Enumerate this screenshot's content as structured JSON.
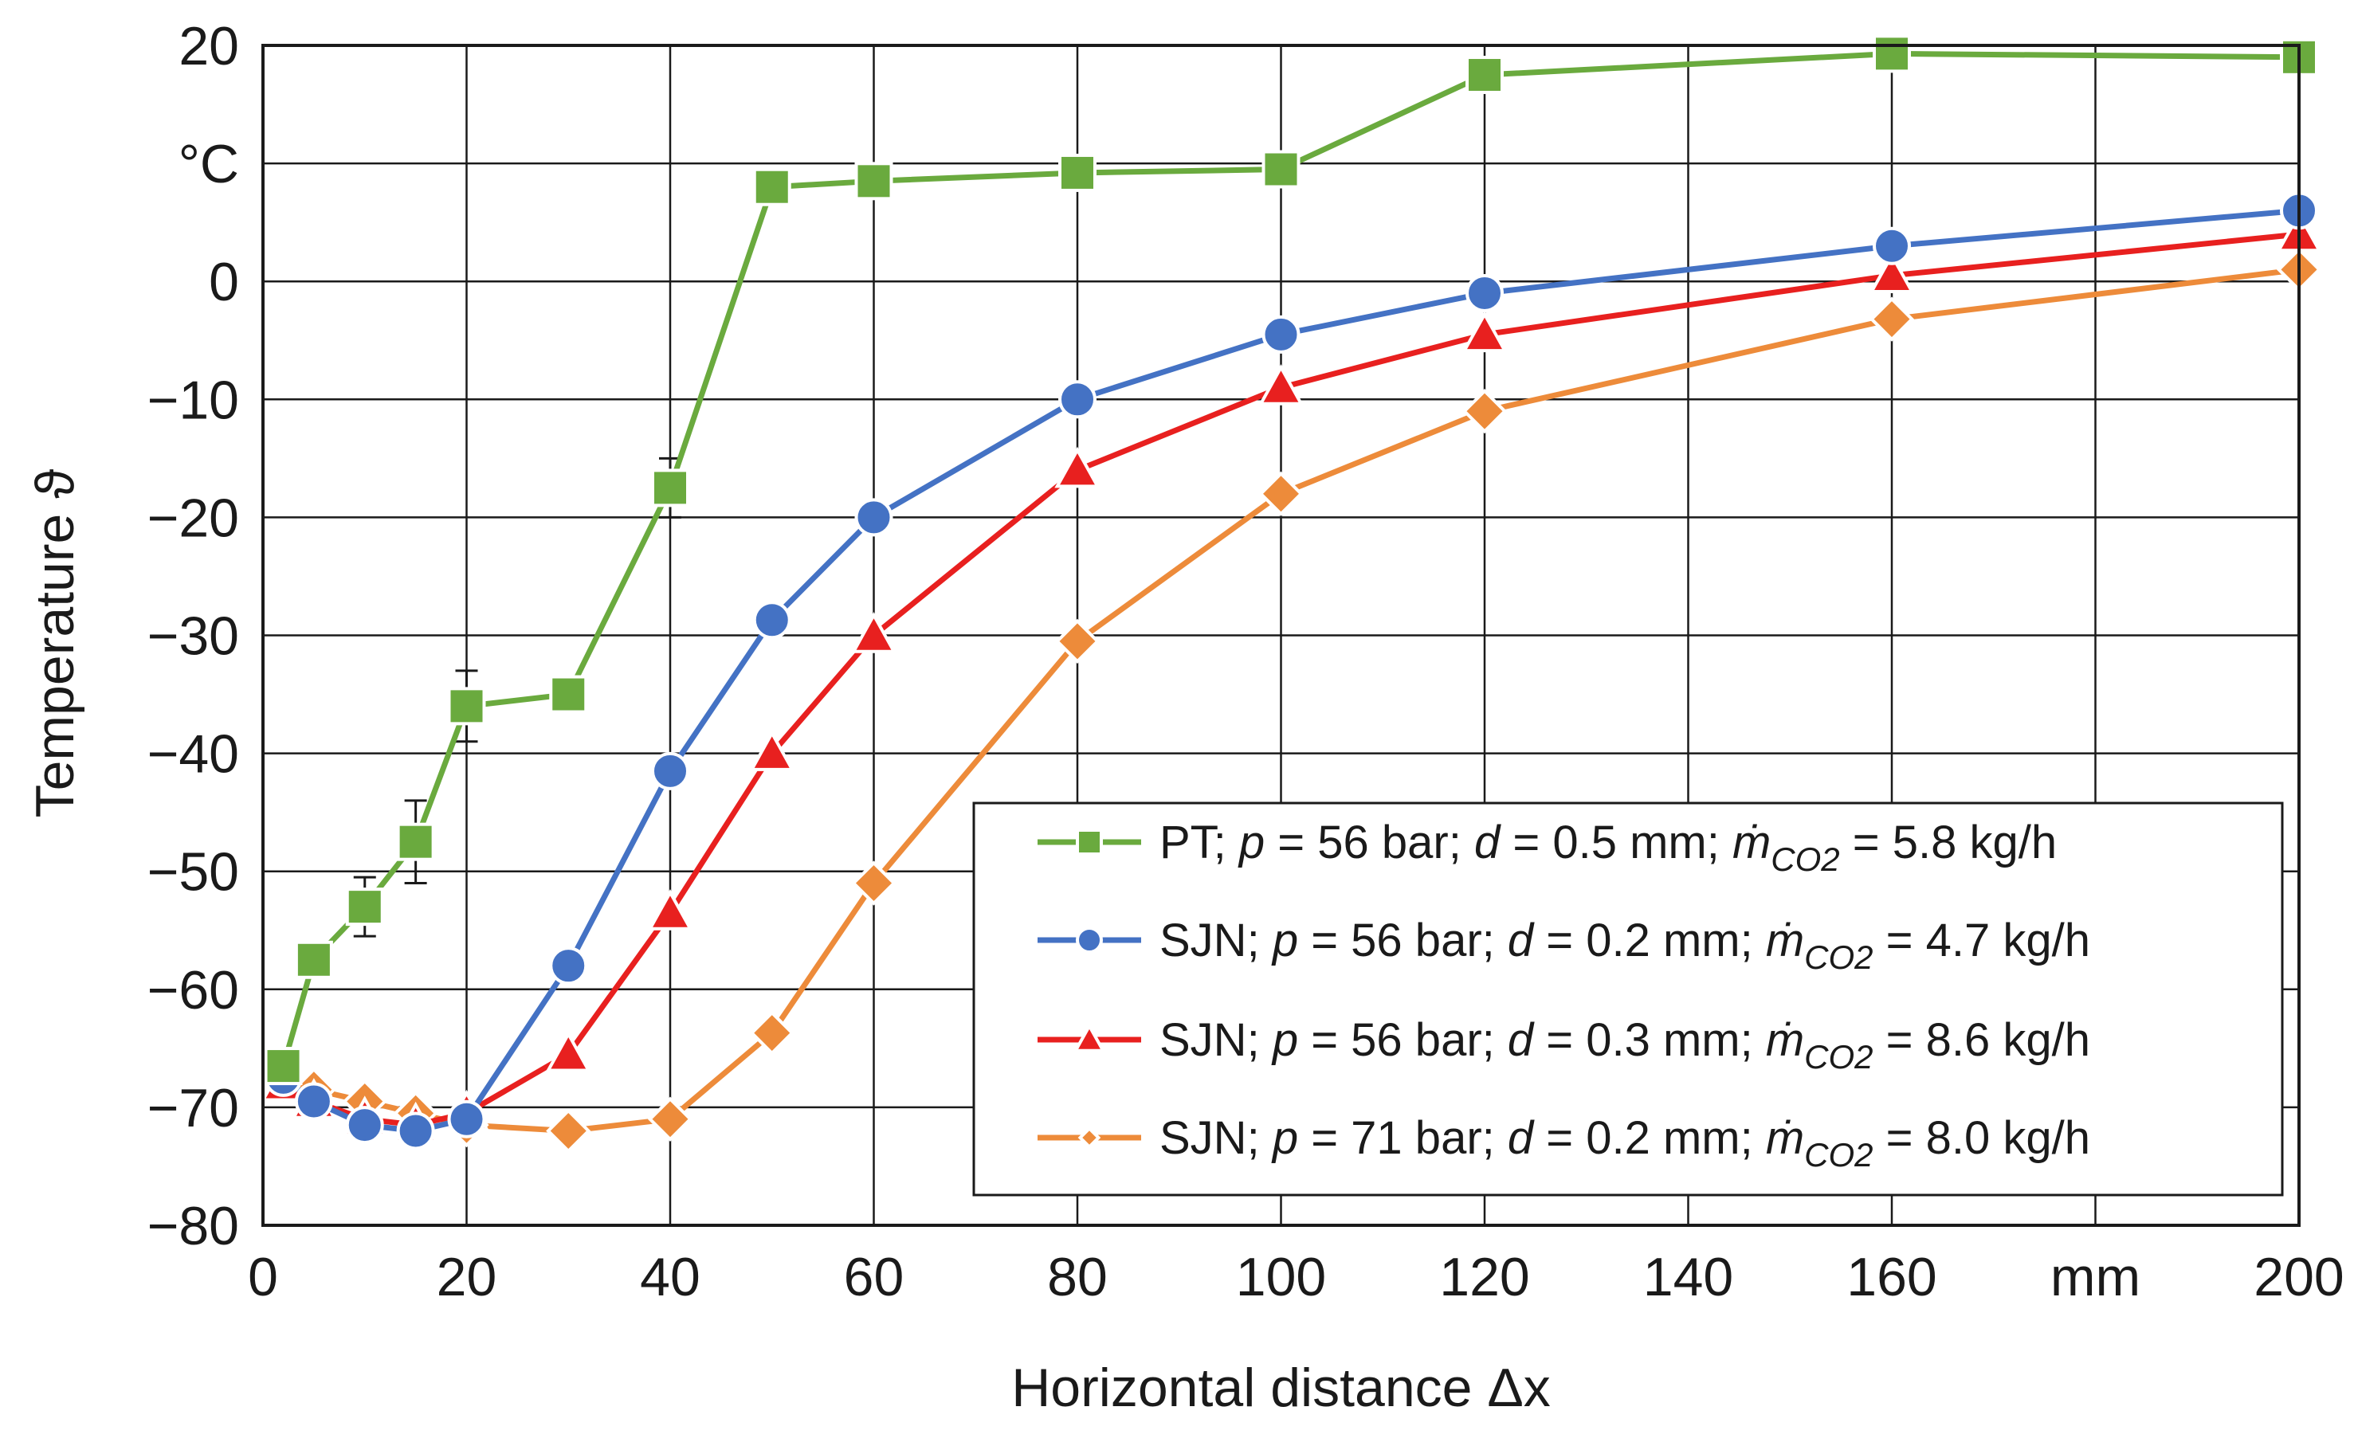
{
  "chart_data": {
    "type": "line",
    "title": "",
    "xlabel": "Horizontal distance Δx",
    "ylabel": "Temperature ϑ",
    "x_unit": "mm",
    "y_unit": "°C",
    "xlim": [
      0,
      200
    ],
    "ylim": [
      -80,
      20
    ],
    "grid": true,
    "legend_position": "bottom-right",
    "x_tick_labels": [
      "0",
      "20",
      "40",
      "60",
      "80",
      "100",
      "120",
      "140",
      "160",
      "mm",
      "200"
    ],
    "y_tick_labels": [
      "20",
      "°C",
      "0",
      "−10",
      "−20",
      "−30",
      "−40",
      "−50",
      "−60",
      "−70",
      "−80"
    ],
    "series": [
      {
        "name": "PT; p = 56 bar; d = 0.5 mm; ṁCO2 = 5.8 kg/h",
        "legend": {
          "prefix": "PT; ",
          "p": "56",
          "d": "0.5",
          "mdot": "5.8"
        },
        "color": "#6aaa3e",
        "marker": "square",
        "x": [
          2,
          5,
          10,
          15,
          20,
          30,
          40,
          50,
          60,
          80,
          100,
          120,
          160,
          200
        ],
        "y": [
          -66.5,
          -57.5,
          -53,
          -47.5,
          -36,
          -35,
          -17.5,
          8,
          8.5,
          9.2,
          9.5,
          17.5,
          19.3,
          19
        ],
        "error": [
          0,
          0,
          2.5,
          3.5,
          3,
          0,
          2.5,
          0,
          0,
          0,
          0,
          0,
          0,
          0
        ]
      },
      {
        "name": "SJN; p = 56 bar; d = 0.2 mm; ṁCO2 = 4.7 kg/h",
        "legend": {
          "prefix": "SJN; ",
          "p": "56",
          "d": "0.2",
          "mdot": "4.7"
        },
        "color": "#4472c4",
        "marker": "circle",
        "x": [
          2,
          5,
          10,
          15,
          20,
          30,
          40,
          50,
          60,
          80,
          100,
          120,
          160,
          200
        ],
        "y": [
          -67.5,
          -69.5,
          -71.5,
          -72,
          -71,
          -58,
          -41.5,
          -28.7,
          -20,
          -10,
          -4.5,
          -1,
          3,
          6
        ],
        "error": [
          0,
          0,
          0,
          0,
          0,
          0,
          0,
          0,
          0,
          0,
          0,
          0,
          0,
          0
        ]
      },
      {
        "name": "SJN; p = 56 bar;d = 0.3 mm; ṁCO2 = 8.6 kg/h",
        "legend": {
          "prefix": "SJN; ",
          "p": "56",
          "d": "0.3",
          "mdot": "8.6"
        },
        "color": "#e8201f",
        "marker": "triangle",
        "x": [
          2,
          5,
          10,
          15,
          20,
          30,
          40,
          50,
          60,
          80,
          100,
          120,
          160,
          200
        ],
        "y": [
          -68,
          -69.5,
          -71,
          -71.5,
          -70.5,
          -65.5,
          -53.5,
          -40,
          -30,
          -16,
          -9,
          -4.5,
          0.5,
          4
        ],
        "error": [
          0,
          0,
          0,
          0,
          0,
          0,
          0,
          0,
          0,
          0,
          0,
          0,
          0,
          0
        ]
      },
      {
        "name": "SJN; p = 71 bar; d = 0.2 mm; ṁCO2 = 8.0 kg/h",
        "legend": {
          "prefix": "SJN; ",
          "p": "71",
          "d": "0.2",
          "mdot": "8.0"
        },
        "color": "#ed8b3a",
        "marker": "diamond",
        "x": [
          2,
          5,
          10,
          15,
          20,
          30,
          40,
          50,
          60,
          80,
          100,
          120,
          160,
          200
        ],
        "y": [
          -68,
          -68.5,
          -69.5,
          -70.5,
          -71.5,
          -72,
          -71,
          -63.7,
          -51,
          -30.5,
          -18,
          -11,
          -3.2,
          1
        ],
        "error": [
          0,
          0,
          0,
          0,
          0,
          0,
          0,
          0,
          0,
          0,
          0,
          0,
          0,
          0
        ]
      }
    ]
  }
}
